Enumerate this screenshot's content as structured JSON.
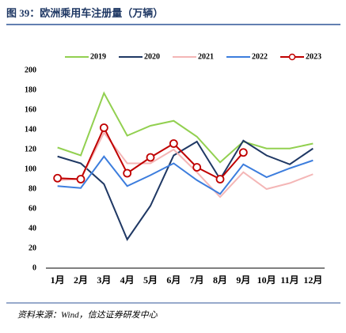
{
  "chart_data": {
    "type": "line",
    "title": "图 39：欧洲乘用车注册量（万辆）",
    "source": "资料来源：Wind，信达证券研发中心",
    "categories": [
      "1月",
      "2月",
      "3月",
      "4月",
      "5月",
      "6月",
      "7月",
      "8月",
      "9月",
      "10月",
      "11月",
      "12月"
    ],
    "series": [
      {
        "name": "2019",
        "color": "#92d050",
        "values": [
          122,
          114,
          177,
          134,
          144,
          149,
          133,
          107,
          128,
          121,
          121,
          126
        ]
      },
      {
        "name": "2020",
        "color": "#1f3864",
        "values": [
          113,
          106,
          85,
          29,
          63,
          114,
          128,
          90,
          129,
          114,
          105,
          121
        ]
      },
      {
        "name": "2021",
        "color": "#f4b6b6",
        "values": [
          89,
          90,
          137,
          106,
          106,
          120,
          97,
          72,
          97,
          80,
          86,
          95
        ]
      },
      {
        "name": "2022",
        "color": "#3c7ddd",
        "values": [
          83,
          81,
          113,
          83,
          94,
          106,
          89,
          75,
          105,
          92,
          101,
          109
        ]
      },
      {
        "name": "2023",
        "color": "#c00000",
        "markers": true,
        "values": [
          91,
          90,
          142,
          96,
          112,
          126,
          102,
          90,
          117,
          null,
          null,
          null
        ]
      }
    ],
    "ylim": [
      0,
      200
    ],
    "yticks": [
      0,
      20,
      40,
      60,
      80,
      100,
      120,
      140,
      160,
      180,
      200
    ]
  }
}
